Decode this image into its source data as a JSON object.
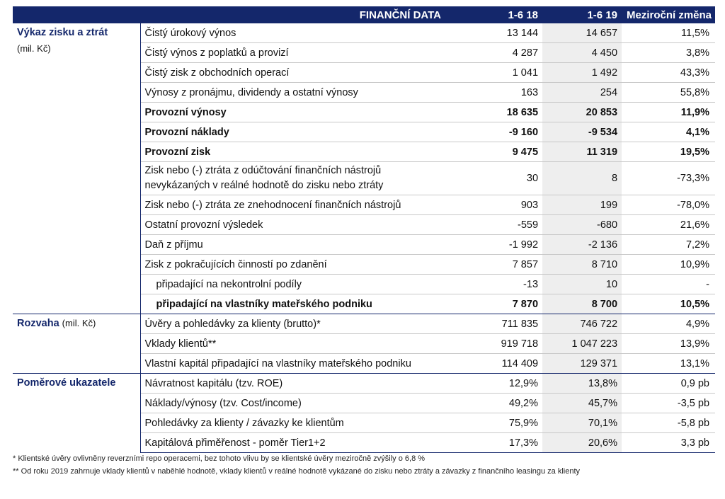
{
  "header": {
    "title": "FINANČNÍ DATA",
    "col1": "1-6 18",
    "col2": "1-6 19",
    "col3": "Meziroční změna"
  },
  "sections": {
    "pl": {
      "title": "Výkaz zisku a ztrát",
      "unit": "(mil. Kč)"
    },
    "bs": {
      "title": "Rozvaha",
      "unit": "(mil. Kč)"
    },
    "ratios": {
      "title": "Poměrové ukazatele"
    }
  },
  "rows": [
    {
      "label": "Čistý úrokový výnos",
      "y18": "13 144",
      "y19": "14 657",
      "chg": "11,5%"
    },
    {
      "label": "Čistý výnos z poplatků a provizí",
      "y18": "4 287",
      "y19": "4 450",
      "chg": "3,8%"
    },
    {
      "label": "Čistý zisk z obchodních operací",
      "y18": "1 041",
      "y19": "1 492",
      "chg": "43,3%"
    },
    {
      "label": "Výnosy z pronájmu, dividendy a ostatní výnosy",
      "y18": "163",
      "y19": "254",
      "chg": "55,8%"
    },
    {
      "label": "Provozní výnosy",
      "y18": "18 635",
      "y19": "20 853",
      "chg": "11,9%"
    },
    {
      "label": "Provozní náklady",
      "y18": "-9 160",
      "y19": "-9 534",
      "chg": "4,1%"
    },
    {
      "label": "Provozní zisk",
      "y18": "9 475",
      "y19": "11 319",
      "chg": "19,5%"
    },
    {
      "label": "Zisk nebo (-) ztráta z odúčtování finančních nástrojů",
      "label2": "nevykázaných v reálné hodnotě do zisku nebo ztráty",
      "y18": "30",
      "y19": "8",
      "chg": "-73,3%"
    },
    {
      "label": "Zisk nebo (-) ztráta ze znehodnocení finančních nástrojů",
      "y18": "903",
      "y19": "199",
      "chg": "-78,0%"
    },
    {
      "label": "Ostatní provozní výsledek",
      "y18": "-559",
      "y19": "-680",
      "chg": "21,6%"
    },
    {
      "label": "Daň z příjmu",
      "y18": "-1 992",
      "y19": "-2 136",
      "chg": "7,2%"
    },
    {
      "label": "Zisk z pokračujících činností po zdanění",
      "y18": "7 857",
      "y19": "8 710",
      "chg": "10,9%"
    },
    {
      "label": "připadající na nekontrolní podíly",
      "y18": "-13",
      "y19": "10",
      "chg": "-"
    },
    {
      "label": "připadající na vlastníky mateřského podniku",
      "y18": "7 870",
      "y19": "8 700",
      "chg": "10,5%"
    },
    {
      "label": "Úvěry a pohledávky za klienty (brutto)*",
      "y18": "711 835",
      "y19": "746 722",
      "chg": "4,9%"
    },
    {
      "label": "Vklady klientů**",
      "y18": "919 718",
      "y19": "1 047 223",
      "chg": "13,9%"
    },
    {
      "label": "Vlastní kapitál připadající na vlastníky mateřského podniku",
      "y18": "114 409",
      "y19": "129 371",
      "chg": "13,1%"
    },
    {
      "label": "Návratnost kapitálu (tzv. ROE)",
      "y18": "12,9%",
      "y19": "13,8%",
      "chg": "0,9 pb"
    },
    {
      "label": "Náklady/výnosy (tzv. Cost/income)",
      "y18": "49,2%",
      "y19": "45,7%",
      "chg": "-3,5 pb"
    },
    {
      "label": "Pohledávky za klienty / závazky ke klientům",
      "y18": "75,9%",
      "y19": "70,1%",
      "chg": "-5,8 pb"
    },
    {
      "label": "Kapitálová přiměřenost - poměr Tier1+2",
      "y18": "17,3%",
      "y19": "20,6%",
      "chg": "3,3 pb"
    }
  ],
  "footnotes": {
    "n1": "* Klientské úvěry ovlivněny reverzními repo operacemi, bez tohoto vlivu by se klientské úvěry meziročně zvýšily o 6,8 %",
    "n2": "** Od roku 2019 zahrnuje vklady klientů v naběhlé hodnotě, vklady klientů v reálné hodnotě vykázané do zisku nebo ztráty a závazky z finančního leasingu za klienty"
  }
}
